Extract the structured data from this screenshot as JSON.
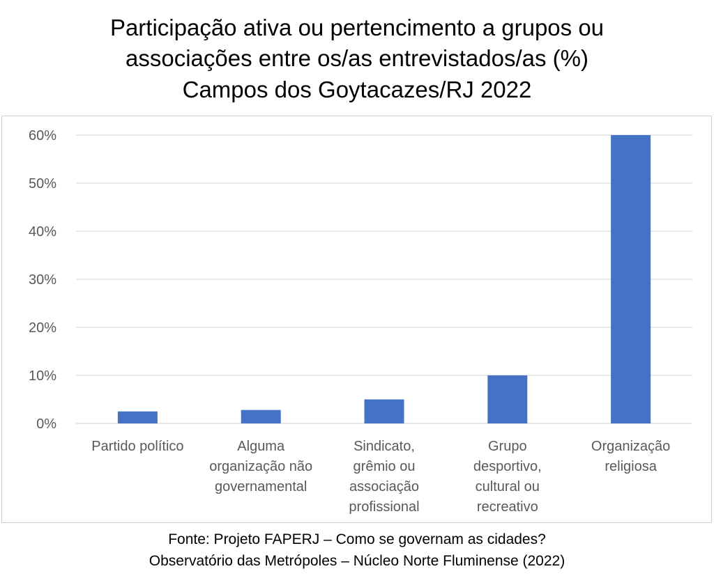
{
  "title_lines": [
    "Participação ativa ou pertencimento a grupos ou",
    "associações entre os/as entrevistados/as (%)",
    "Campos dos Goytacazes/RJ 2022"
  ],
  "footer_lines": [
    "Fonte: Projeto FAPERJ – Como se governam as cidades?",
    "Observatório das Metrópoles – Núcleo Norte Fluminense (2022)"
  ],
  "colors": {
    "bar": "#4472C4",
    "grid": "#d9d9d9",
    "tick_text": "#595959",
    "frame": "#d0d0d0"
  },
  "chart_data": {
    "type": "bar",
    "title": "Participação ativa ou pertencimento a grupos ou associações entre os/as entrevistados/as (%) Campos dos Goytacazes/RJ 2022",
    "categories": [
      [
        "Partido político"
      ],
      [
        "Alguma",
        "organização não",
        "governamental"
      ],
      [
        "Sindicato,",
        "grêmio ou",
        "associação",
        "profissional"
      ],
      [
        "Grupo",
        "desportivo,",
        "cultural ou",
        "recreativo"
      ],
      [
        "Organização",
        "religiosa"
      ]
    ],
    "values": [
      2.5,
      2.8,
      5.0,
      10.0,
      60.3
    ],
    "ylim": [
      0,
      60
    ],
    "yticks": [
      0,
      10,
      20,
      30,
      40,
      50,
      60
    ],
    "ytick_labels": [
      "0%",
      "10%",
      "20%",
      "30%",
      "40%",
      "50%",
      "60%"
    ],
    "grid": true,
    "legend": "none"
  }
}
